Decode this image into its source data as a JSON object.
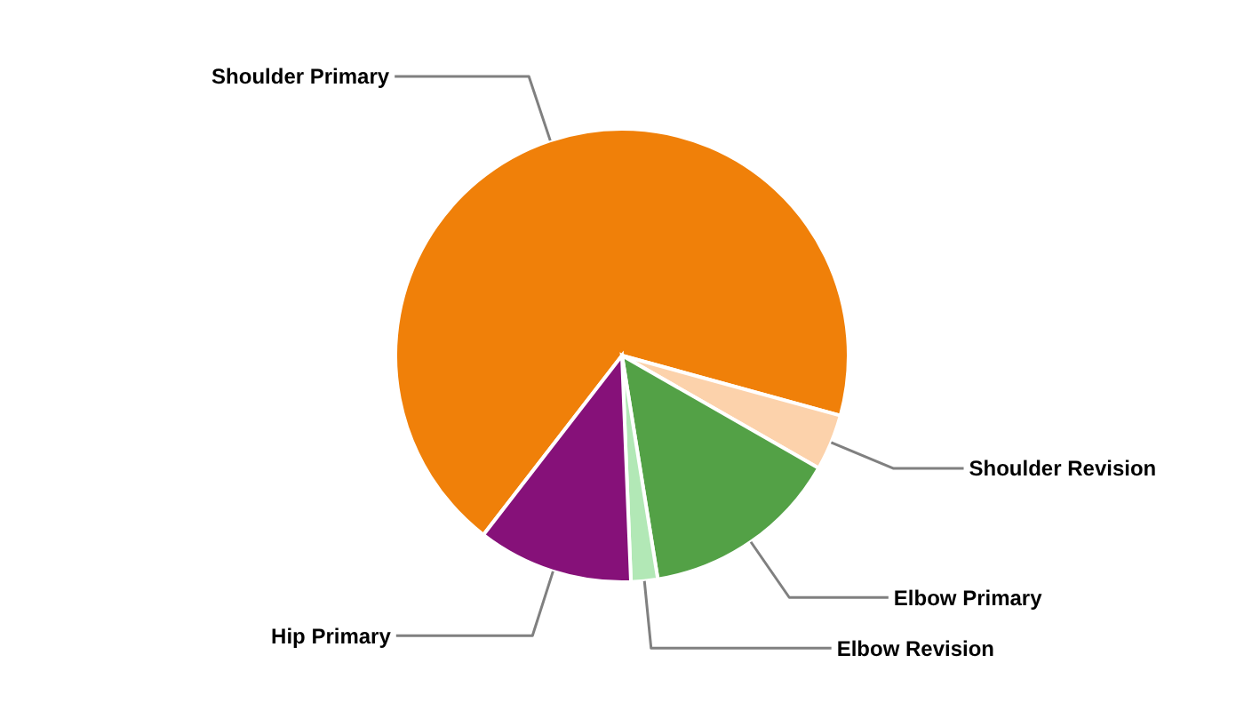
{
  "chart_data": {
    "type": "pie",
    "categories": [
      "Shoulder Primary",
      "Shoulder Revision",
      "Elbow Primary",
      "Elbow Revision",
      "Hip Primary"
    ],
    "values": [
      68.8,
      4.0,
      14.2,
      1.9,
      11.1
    ],
    "colors": [
      "#f08009",
      "#fcd2ab",
      "#53a146",
      "#b2e8b6",
      "#861179"
    ]
  }
}
